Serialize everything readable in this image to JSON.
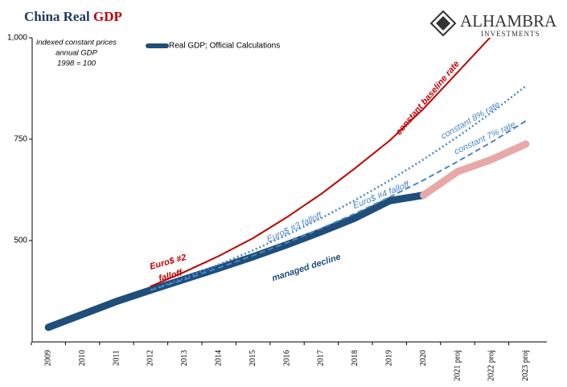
{
  "chart_data": {
    "type": "line",
    "title": "China Real",
    "title_highlight": "GDP",
    "logo": {
      "name": "ALHAMBRA",
      "sub": "INVESTMENTS"
    },
    "note": [
      "indexed constant prices",
      "annual GDP",
      "1998 = 100"
    ],
    "categories": [
      "2009",
      "2010",
      "2011",
      "2012",
      "2013",
      "2014",
      "2015",
      "2016",
      "2017",
      "2018",
      "2019",
      "2020",
      "2021 proj",
      "2022 proj",
      "2023 proj"
    ],
    "ylim": [
      250,
      1000
    ],
    "yticks": [
      500,
      750,
      {
        "value": 1000,
        "label": "1,000"
      }
    ],
    "series": [
      {
        "name": "Real GDP; Official Calculations",
        "color": "#1f4e79",
        "width": 9,
        "style": "solid",
        "values": [
          286,
          318,
          350,
          378,
          405,
          432,
          460,
          490,
          522,
          556,
          598,
          612,
          null,
          null,
          null
        ]
      },
      {
        "color": "#e8a8a8",
        "width": 9,
        "style": "solid",
        "values": [
          null,
          null,
          null,
          null,
          null,
          null,
          null,
          null,
          null,
          null,
          null,
          612,
          670,
          700,
          738
        ]
      },
      {
        "color": "#c00000",
        "width": 2,
        "style": "solid",
        "values": [
          null,
          null,
          null,
          387,
          423,
          462,
          506,
          558,
          615,
          679,
          746,
          825,
          915,
          1005,
          null
        ]
      },
      {
        "color": "#4a86c8",
        "width": 2.5,
        "style": "dotted",
        "values": [
          null,
          null,
          null,
          378,
          408,
          441,
          476,
          514,
          555,
          600,
          648,
          700,
          756,
          816,
          881
        ]
      },
      {
        "color": "#4a86c8",
        "width": 2,
        "style": "dashed",
        "values": [
          null,
          null,
          null,
          378,
          404,
          433,
          463,
          495,
          530,
          567,
          607,
          649,
          695,
          743,
          795
        ]
      }
    ],
    "annotations": [
      "constant baseline rate",
      "constant 8% rate",
      "constant 7% rate",
      "Euro$ #2",
      "falloff",
      "Euro$ #3 falloff",
      "Euro$ #4 falloff",
      "managed decline"
    ]
  }
}
